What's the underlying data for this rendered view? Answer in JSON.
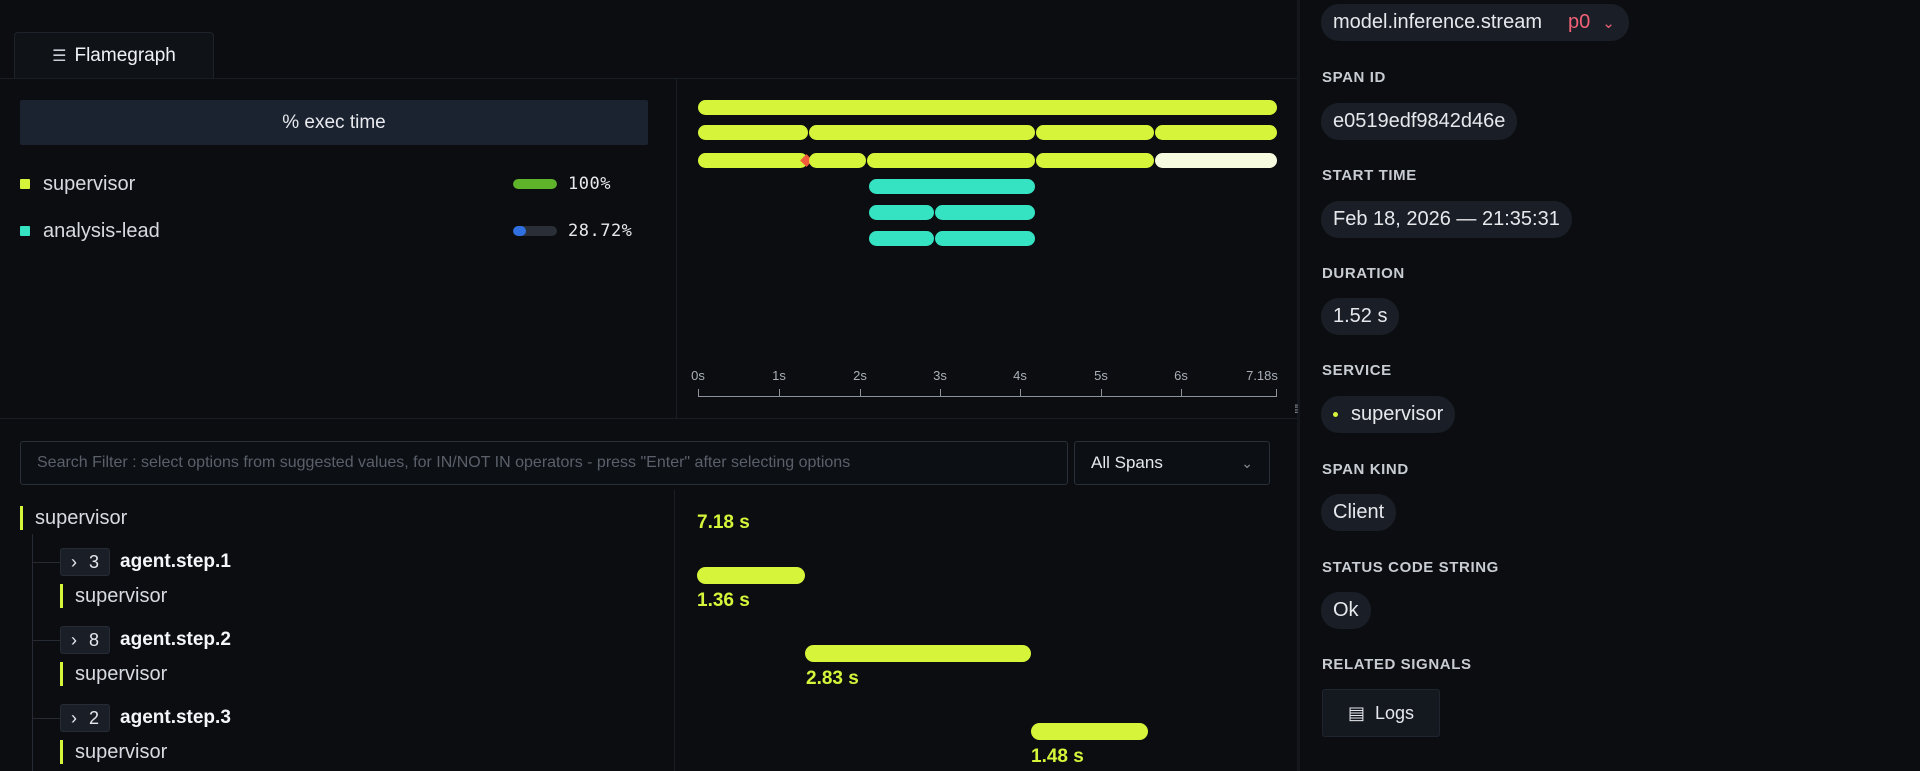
{
  "tabs": [
    {
      "label": "Flamegraph",
      "icon": "flamegraph-icon"
    }
  ],
  "legend": {
    "header": "% exec time",
    "items": [
      {
        "label": "supervisor",
        "percent": "100%",
        "fill": 1.0,
        "swatch": "#d6f53a",
        "bar_color": "#5fb32a"
      },
      {
        "label": "analysis-lead",
        "percent": "28.72%",
        "fill": 0.2872,
        "swatch": "#35e3c3",
        "bar_color": "#2f6fe0"
      }
    ]
  },
  "timeline": {
    "ticks": [
      "0s",
      "1s",
      "2s",
      "3s",
      "4s",
      "5s",
      "6s",
      "7.18s"
    ]
  },
  "search": {
    "placeholder": "Search Filter : select options from suggested values, for IN/NOT IN operators - press \"Enter\" after selecting options",
    "scope": "All Spans"
  },
  "trace": {
    "root": {
      "service": "supervisor",
      "duration": "7.18 s"
    },
    "steps": [
      {
        "count": "3",
        "name": "agent.step.1",
        "service": "supervisor",
        "duration": "1.36 s"
      },
      {
        "count": "8",
        "name": "agent.step.2",
        "service": "supervisor",
        "duration": "2.83 s"
      },
      {
        "count": "2",
        "name": "agent.step.3",
        "service": "supervisor",
        "duration": "1.48 s"
      }
    ]
  },
  "details": {
    "span_name": "model.inference.stream",
    "priority": "p0",
    "fields": [
      {
        "label": "SPAN ID",
        "value": "e0519edf9842d46e"
      },
      {
        "label": "START TIME",
        "value": "Feb 18, 2026 — 21:35:31"
      },
      {
        "label": "DURATION",
        "value": "1.52 s"
      },
      {
        "label": "SERVICE",
        "value": "supervisor"
      },
      {
        "label": "SPAN KIND",
        "value": "Client"
      },
      {
        "label": "STATUS CODE STRING",
        "value": "Ok"
      }
    ],
    "related_label": "RELATED SIGNALS",
    "logs_label": "Logs"
  },
  "colors": {
    "accent": "#d6f53a",
    "teal": "#35e3c3",
    "priority": "#f06177"
  }
}
